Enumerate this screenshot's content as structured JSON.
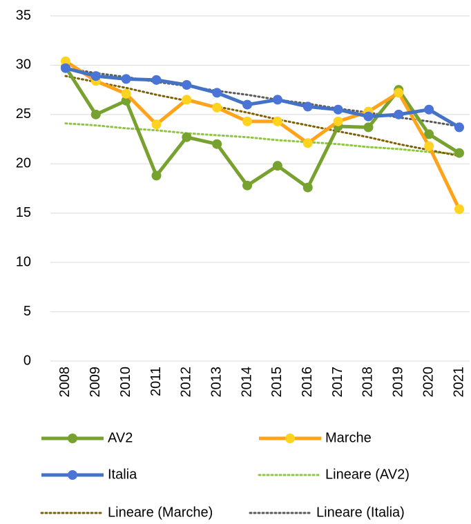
{
  "chart_data": {
    "type": "line",
    "categories": [
      "2008",
      "2009",
      "2010",
      "2011",
      "2012",
      "2013",
      "2014",
      "2015",
      "2016",
      "2017",
      "2018",
      "2019",
      "2020",
      "2021"
    ],
    "series": [
      {
        "name": "AV2",
        "color": "#78a22f",
        "marker_color": "#78a22f",
        "style": "solid",
        "values": [
          29.8,
          25.0,
          26.4,
          18.8,
          22.7,
          22.0,
          17.8,
          19.8,
          17.6,
          23.8,
          23.7,
          27.5,
          23.0,
          21.1
        ]
      },
      {
        "name": "Marche",
        "color": "#ffa31a",
        "marker_color": "#ffd320",
        "style": "solid",
        "values": [
          30.4,
          28.4,
          27.1,
          24.0,
          26.5,
          25.7,
          24.3,
          24.3,
          22.1,
          24.3,
          25.3,
          27.2,
          21.8,
          15.4
        ]
      },
      {
        "name": "Italia",
        "color": "#4472c4",
        "marker_color": "#4a74d6",
        "style": "solid",
        "values": [
          29.7,
          28.9,
          28.6,
          28.5,
          28.0,
          27.2,
          26.0,
          26.5,
          25.8,
          25.5,
          24.8,
          25.0,
          25.5,
          23.7
        ]
      },
      {
        "name": "Lineare (AV2)",
        "color": "#8dc63f",
        "style": "dotted",
        "values": [
          24.1,
          23.9,
          23.6,
          23.4,
          23.1,
          22.9,
          22.7,
          22.4,
          22.2,
          22.0,
          21.7,
          21.5,
          21.2,
          21.0
        ]
      },
      {
        "name": "Lineare (Marche)",
        "color": "#7f6000",
        "style": "dotted",
        "values": [
          28.9,
          28.3,
          27.7,
          27.0,
          26.4,
          25.8,
          25.2,
          24.5,
          23.9,
          23.3,
          22.7,
          22.0,
          21.4,
          20.8
        ]
      },
      {
        "name": "Lineare (Italia)",
        "color": "#595959",
        "style": "dotted",
        "values": [
          29.7,
          29.2,
          28.8,
          28.3,
          27.9,
          27.4,
          27.0,
          26.5,
          26.1,
          25.6,
          25.2,
          24.7,
          24.3,
          23.8
        ]
      }
    ],
    "ylim": [
      0,
      35
    ],
    "yticks": [
      0,
      5,
      10,
      15,
      20,
      25,
      30,
      35
    ],
    "grid": true
  }
}
